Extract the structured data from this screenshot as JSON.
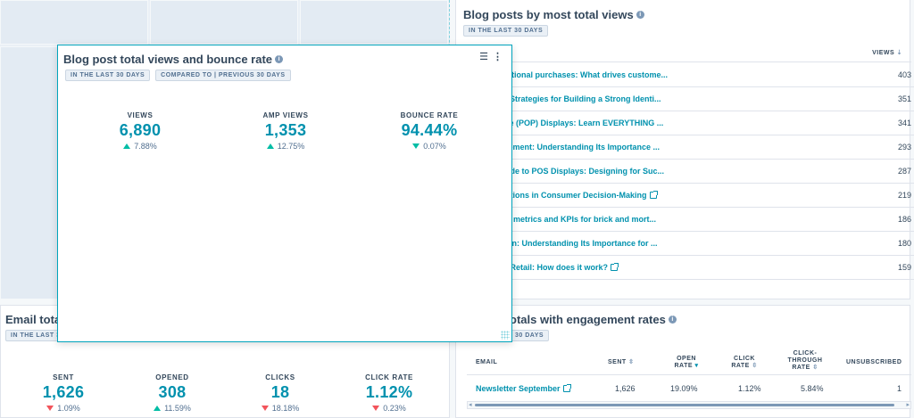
{
  "overlay": {
    "title": "Blog post total views and bounce rate",
    "pills": [
      "IN THE LAST 30 DAYS",
      "COMPARED TO | PREVIOUS 30 DAYS"
    ],
    "metrics": [
      {
        "label": "VIEWS",
        "value": "6,890",
        "change": "7.88%",
        "direction": "up"
      },
      {
        "label": "AMP VIEWS",
        "value": "1,353",
        "change": "12.75%",
        "direction": "up"
      },
      {
        "label": "BOUNCE RATE",
        "value": "94.44%",
        "change": "0.07%",
        "direction": "down"
      }
    ]
  },
  "email_totals": {
    "title": "Email totals",
    "pill": "IN THE LAST 30",
    "metrics": [
      {
        "label": "SENT",
        "value": "1,626",
        "change": "1.09%",
        "direction": "down"
      },
      {
        "label": "OPENED",
        "value": "308",
        "change": "11.59%",
        "direction": "up"
      },
      {
        "label": "CLICKS",
        "value": "18",
        "change": "18.18%",
        "direction": "down"
      },
      {
        "label": "CLICK RATE",
        "value": "1.12%",
        "change": "0.23%",
        "direction": "down"
      }
    ]
  },
  "blog_posts": {
    "title": "Blog posts by most total views",
    "pill": "IN THE LAST 30 DAYS",
    "column_header": "VIEWS",
    "rows": [
      {
        "title": "ys Emotional purchases: What drives custome...",
        "views": "403",
        "external": false
      },
      {
        "title": "nding: Strategies for Building a Strong Identi...",
        "views": "351",
        "external": false
      },
      {
        "title": "urchase (POP) Displays: Learn EVERYTHING ...",
        "views": "341",
        "external": false
      },
      {
        "title": "Management: Understanding Its Importance ...",
        "views": "293",
        "external": false
      },
      {
        "title": "ate Guide to POS Displays: Designing for Suc...",
        "views": "287",
        "external": false
      },
      {
        "title": "of Emotions in Consumer Decision-Making",
        "views": "219",
        "external": true
      },
      {
        "title": "al retail metrics and KPIs for brick and mort...",
        "views": "186",
        "external": false
      },
      {
        "title": "ue Chain: Understanding Its Importance for ...",
        "views": "180",
        "external": false
      },
      {
        "title": "sles in Retail: How does it work?",
        "views": "159",
        "external": true
      }
    ]
  },
  "email_engagement": {
    "title": "otals with engagement rates",
    "pill": "30 DAYS",
    "columns": [
      "EMAIL",
      "SENT",
      "OPEN RATE",
      "CLICK RATE",
      "CLICK-THROUGH RATE",
      "UNSUBSCRIBED"
    ],
    "rows": [
      {
        "email": "Newsletter September",
        "sent": "1,626",
        "open_rate": "19.09%",
        "click_rate": "1.12%",
        "ctr": "5.84%",
        "unsubscribed": "1"
      }
    ]
  }
}
